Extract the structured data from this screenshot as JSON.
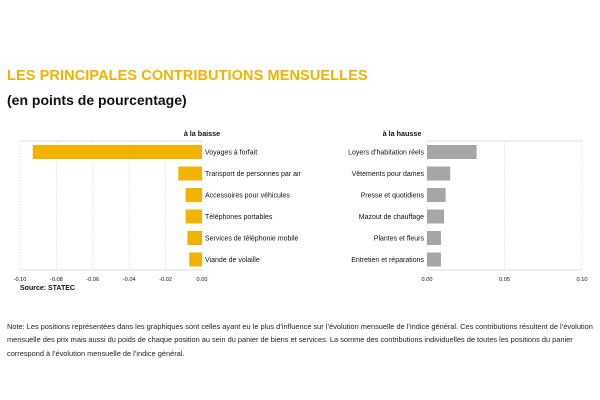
{
  "title": "LES PRINCIPALES CONTRIBUTIONS MENSUELLES",
  "subtitle": "(en points de pourcentage)",
  "source": "Source: STATEC",
  "note": "Note: Les positions représentées dans les graphiques sont celles ayant eu le plus d’influence sur l’évolution mensuelle de l’indice général. Ces contributions résultent de l’évolution mensuelle des prix mais aussi du poids de chaque position au sein du panier de biens et services. La somme des contributions individuelles de toutes les positions du panier correspond à l’évolution mensuelle de l’indice général.",
  "colors": {
    "title": "#f2b300",
    "bar_down": "#f2b300",
    "bar_up": "#a6a6a6"
  },
  "chart_data": [
    {
      "type": "bar",
      "orientation": "horizontal",
      "title": "à la baisse",
      "categories": [
        "Voyages à forfait",
        "Transport de personnes par air",
        "Accessoires pour véhicules",
        "Téléphones portables",
        "Services de téléphonie mobile",
        "Viande de volaille"
      ],
      "values": [
        -0.093,
        -0.013,
        -0.009,
        -0.009,
        -0.008,
        -0.007
      ],
      "xlim": [
        -0.1,
        0.0
      ],
      "ticks": [
        -0.1,
        -0.08,
        -0.06,
        -0.04,
        -0.02,
        0.0
      ],
      "tick_labels": [
        "-0.10",
        "-0.08",
        "-0.06",
        "-0.04",
        "-0.02",
        "0.00"
      ],
      "grid": true
    },
    {
      "type": "bar",
      "orientation": "horizontal",
      "title": "à la hausse",
      "categories": [
        "Loyers d’habitation réels",
        "Vêtements pour dames",
        "Presse et quotidiens",
        "Mazout de chauffage",
        "Plantes et fleurs",
        "Entretien et réparations"
      ],
      "values": [
        0.032,
        0.015,
        0.012,
        0.011,
        0.009,
        0.009
      ],
      "xlim": [
        0.0,
        0.1
      ],
      "ticks": [
        0.0,
        0.05,
        0.1
      ],
      "tick_labels": [
        "0.00",
        "0.05",
        "0.10"
      ],
      "grid": true
    }
  ]
}
